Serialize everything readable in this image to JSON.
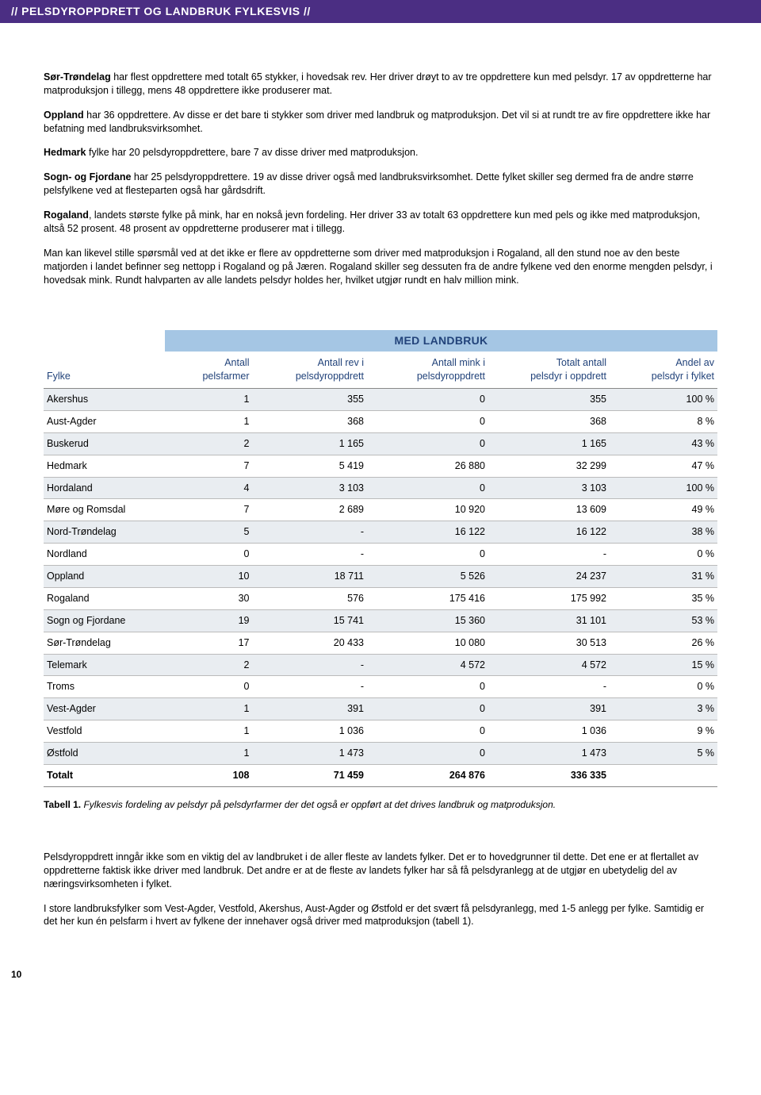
{
  "header": {
    "title": "// PELSDYROPPDRETT OG LANDBRUK FYLKESVIS //"
  },
  "paras": {
    "p1_b": "Sør-Trøndelag",
    "p1_rest": " har flest oppdrettere med totalt 65 stykker, i hovedsak rev. Her driver drøyt to av tre oppdrettere kun med pelsdyr. 17 av oppdretterne har matproduksjon i tillegg, mens 48 oppdrettere ikke produserer mat.",
    "p2_b": "Oppland",
    "p2_rest": " har 36 oppdrettere. Av disse er det bare ti stykker som driver med landbruk og matproduksjon. Det vil si at rundt tre av fire oppdrettere ikke har befatning med landbruksvirksomhet.",
    "p3_b": "Hedmark",
    "p3_rest": " fylke har 20 pelsdyroppdrettere, bare 7 av disse driver med matproduksjon.",
    "p4_b": "Sogn- og Fjordane",
    "p4_rest": " har 25 pelsdyroppdrettere. 19 av disse driver også med landbruksvirksomhet. Dette fylket skiller seg dermed fra de andre større pelsfylkene ved at flesteparten også har gårdsdrift.",
    "p5_b": "Rogaland",
    "p5_rest": ", landets største fylke på mink, har en nokså jevn fordeling. Her driver 33 av totalt 63 oppdrettere kun med pels og ikke med matproduksjon, altså 52 prosent. 48 prosent av oppdretterne produserer mat i tillegg.",
    "p6": "Man kan likevel stille spørsmål ved at det ikke er flere av oppdretterne som driver med matproduksjon i Rogaland, all den stund noe av den beste matjorden i landet befinner seg nettopp i Rogaland og på Jæren. Rogaland skiller seg dessuten fra de andre fylkene ved den enorme mengden pelsdyr, i hovedsak mink. Rundt halvparten av alle landets pelsdyr holdes her, hvilket utgjør rundt en halv million mink."
  },
  "table": {
    "title": "MED LANDBRUK",
    "columns": [
      "Fylke",
      "Antall\npelsfarmer",
      "Antall rev i\npelsdyroppdrett",
      "Antall mink i\npelsdyroppdrett",
      "Totalt antall\npelsdyr i oppdrett",
      "Andel av\npelsdyr i fylket"
    ],
    "rows": [
      [
        "Akershus",
        "1",
        "355",
        "0",
        "355",
        "100 %"
      ],
      [
        "Aust-Agder",
        "1",
        "368",
        "0",
        "368",
        "8 %"
      ],
      [
        "Buskerud",
        "2",
        "1 165",
        "0",
        "1 165",
        "43 %"
      ],
      [
        "Hedmark",
        "7",
        "5 419",
        "26 880",
        "32 299",
        "47 %"
      ],
      [
        "Hordaland",
        "4",
        "3 103",
        "0",
        "3 103",
        "100 %"
      ],
      [
        "Møre og Romsdal",
        "7",
        "2 689",
        "10 920",
        "13 609",
        "49 %"
      ],
      [
        "Nord-Trøndelag",
        "5",
        "-",
        "16 122",
        "16 122",
        "38 %"
      ],
      [
        "Nordland",
        "0",
        "-",
        "0",
        "-",
        "0 %"
      ],
      [
        "Oppland",
        "10",
        "18 711",
        "5 526",
        "24 237",
        "31 %"
      ],
      [
        "Rogaland",
        "30",
        "576",
        "175 416",
        "175 992",
        "35 %"
      ],
      [
        "Sogn og Fjordane",
        "19",
        "15 741",
        "15 360",
        "31 101",
        "53 %"
      ],
      [
        "Sør-Trøndelag",
        "17",
        "20 433",
        "10 080",
        "30 513",
        "26 %"
      ],
      [
        "Telemark",
        "2",
        "-",
        "4 572",
        "4 572",
        "15 %"
      ],
      [
        "Troms",
        "0",
        "-",
        "0",
        "-",
        "0 %"
      ],
      [
        "Vest-Agder",
        "1",
        "391",
        "0",
        "391",
        "3 %"
      ],
      [
        "Vestfold",
        "1",
        "1 036",
        "0",
        "1 036",
        "9 %"
      ],
      [
        "Østfold",
        "1",
        "1 473",
        "0",
        "1 473",
        "5 %"
      ]
    ],
    "total": [
      "Totalt",
      "108",
      "71 459",
      "264 876",
      "336 335",
      ""
    ],
    "alt_rows": [
      0,
      2,
      4,
      6,
      8,
      10,
      12,
      14,
      16
    ],
    "caption_b": "Tabell 1.",
    "caption_i": " Fylkesvis fordeling av pelsdyr på pelsdyrfarmer der det også er oppført at det drives landbruk og matproduksjon."
  },
  "lower": {
    "p1": "Pelsdyroppdrett inngår ikke som en viktig del av landbruket i de aller fleste av landets fylker. Det er to hovedgrunner til dette. Det ene er at flertallet av oppdretterne faktisk ikke driver med landbruk. Det andre er at de fleste av landets fylker har så få pelsdyranlegg at de utgjør en ubetydelig del av næringsvirksomheten i fylket.",
    "p2": "I store landbruksfylker som Vest-Agder, Vestfold, Akershus, Aust-Agder og Østfold er det svært få pelsdyranlegg, med 1-5 anlegg per fylke. Samtidig er det her kun én pelsfarm i hvert av fylkene der innehaver også driver med matproduksjon (tabell 1)."
  },
  "page_number": "10"
}
